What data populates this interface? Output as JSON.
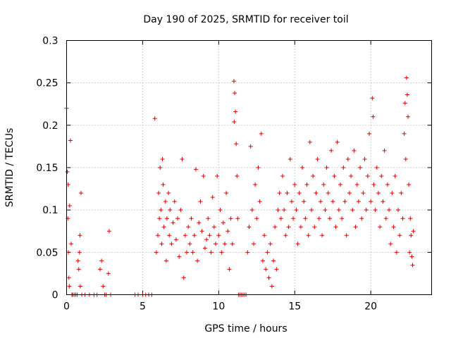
{
  "chart_data": {
    "type": "scatter",
    "title": "Day 190 of 2025, SRMTID for receiver toil",
    "xlabel": "GPS time / hours",
    "ylabel": "SRMTID / TECUs",
    "xlim": [
      0,
      24
    ],
    "ylim": [
      0,
      0.3
    ],
    "xticks": [
      0,
      5,
      10,
      15,
      20
    ],
    "xtick_labels": [
      "0",
      "5",
      "10",
      "15",
      "20"
    ],
    "yticks": [
      0,
      0.05,
      0.1,
      0.15,
      0.2,
      0.25,
      0.3
    ],
    "ytick_labels": [
      "0",
      "0.05",
      "0.1",
      "0.15",
      "0.2",
      "0.25",
      "0.3"
    ],
    "grid": true,
    "marker": "+",
    "color": "#e00000",
    "series": [
      {
        "name": "SRMTID",
        "points": [
          [
            0.0,
            0.22
          ],
          [
            0.05,
            0.145
          ],
          [
            0.1,
            0.13
          ],
          [
            0.08,
            0.09
          ],
          [
            0.12,
            0.05
          ],
          [
            0.15,
            0.02
          ],
          [
            0.2,
            0.105
          ],
          [
            0.25,
            0.182
          ],
          [
            0.3,
            0.06
          ],
          [
            0.18,
            0.01
          ],
          [
            0.35,
            0.0
          ],
          [
            0.4,
            0.0
          ],
          [
            0.5,
            0.0
          ],
          [
            0.6,
            0.0
          ],
          [
            0.7,
            0.0
          ],
          [
            0.75,
            0.04
          ],
          [
            0.8,
            0.03
          ],
          [
            0.85,
            0.05
          ],
          [
            0.9,
            0.01
          ],
          [
            0.95,
            0.12
          ],
          [
            0.88,
            0.07
          ],
          [
            1.0,
            0.0
          ],
          [
            1.2,
            0.0
          ],
          [
            1.5,
            0.0
          ],
          [
            1.8,
            0.0
          ],
          [
            2.0,
            0.0
          ],
          [
            2.2,
            0.03
          ],
          [
            2.3,
            0.04
          ],
          [
            2.4,
            0.01
          ],
          [
            2.5,
            0.0
          ],
          [
            2.6,
            0.0
          ],
          [
            2.8,
            0.075
          ],
          [
            2.75,
            0.025
          ],
          [
            2.9,
            0.0
          ],
          [
            4.5,
            0.0
          ],
          [
            4.7,
            0.0
          ],
          [
            5.0,
            0.0
          ],
          [
            5.2,
            0.0
          ],
          [
            5.4,
            0.0
          ],
          [
            5.6,
            0.0
          ],
          [
            5.8,
            0.208
          ],
          [
            5.9,
            0.05
          ],
          [
            6.0,
            0.07
          ],
          [
            6.05,
            0.12
          ],
          [
            6.1,
            0.09
          ],
          [
            6.15,
            0.15
          ],
          [
            6.2,
            0.1
          ],
          [
            6.25,
            0.06
          ],
          [
            6.3,
            0.16
          ],
          [
            6.35,
            0.13
          ],
          [
            6.4,
            0.08
          ],
          [
            6.5,
            0.11
          ],
          [
            6.55,
            0.04
          ],
          [
            6.6,
            0.09
          ],
          [
            6.7,
            0.12
          ],
          [
            6.75,
            0.07
          ],
          [
            6.8,
            0.1
          ],
          [
            6.9,
            0.06
          ],
          [
            7.0,
            0.085
          ],
          [
            7.1,
            0.11
          ],
          [
            7.2,
            0.065
          ],
          [
            7.3,
            0.09
          ],
          [
            7.4,
            0.045
          ],
          [
            7.5,
            0.1
          ],
          [
            7.6,
            0.16
          ],
          [
            7.7,
            0.02
          ],
          [
            7.8,
            0.07
          ],
          [
            7.9,
            0.05
          ],
          [
            8.0,
            0.08
          ],
          [
            8.1,
            0.06
          ],
          [
            8.2,
            0.09
          ],
          [
            8.3,
            0.05
          ],
          [
            8.4,
            0.07
          ],
          [
            8.5,
            0.148
          ],
          [
            8.6,
            0.04
          ],
          [
            8.7,
            0.085
          ],
          [
            8.8,
            0.11
          ],
          [
            8.9,
            0.075
          ],
          [
            9.0,
            0.14
          ],
          [
            9.1,
            0.055
          ],
          [
            9.2,
            0.065
          ],
          [
            9.3,
            0.09
          ],
          [
            9.4,
            0.07
          ],
          [
            9.5,
            0.05
          ],
          [
            9.6,
            0.115
          ],
          [
            9.7,
            0.08
          ],
          [
            9.8,
            0.06
          ],
          [
            9.9,
            0.14
          ],
          [
            10.0,
            0.07
          ],
          [
            10.1,
            0.1
          ],
          [
            10.2,
            0.05
          ],
          [
            10.3,
            0.085
          ],
          [
            10.4,
            0.06
          ],
          [
            10.5,
            0.12
          ],
          [
            10.6,
            0.075
          ],
          [
            10.7,
            0.03
          ],
          [
            10.8,
            0.09
          ],
          [
            10.9,
            0.06
          ],
          [
            11.0,
            0.252
          ],
          [
            11.05,
            0.238
          ],
          [
            11.1,
            0.216
          ],
          [
            11.02,
            0.204
          ],
          [
            11.15,
            0.178
          ],
          [
            11.2,
            0.14
          ],
          [
            11.25,
            0.09
          ],
          [
            11.3,
            0.0
          ],
          [
            11.4,
            0.0
          ],
          [
            11.5,
            0.0
          ],
          [
            11.6,
            0.0
          ],
          [
            11.7,
            0.0
          ],
          [
            11.8,
            0.0
          ],
          [
            11.9,
            0.05
          ],
          [
            12.0,
            0.08
          ],
          [
            12.1,
            0.175
          ],
          [
            12.2,
            0.1
          ],
          [
            12.3,
            0.06
          ],
          [
            12.4,
            0.13
          ],
          [
            12.5,
            0.09
          ],
          [
            12.6,
            0.15
          ],
          [
            12.7,
            0.11
          ],
          [
            12.8,
            0.19
          ],
          [
            12.9,
            0.04
          ],
          [
            13.0,
            0.07
          ],
          [
            13.1,
            0.03
          ],
          [
            13.2,
            0.05
          ],
          [
            13.3,
            0.02
          ],
          [
            13.4,
            0.06
          ],
          [
            13.5,
            0.01
          ],
          [
            13.6,
            0.04
          ],
          [
            13.7,
            0.08
          ],
          [
            13.8,
            0.03
          ],
          [
            13.9,
            0.1
          ],
          [
            14.0,
            0.12
          ],
          [
            14.1,
            0.09
          ],
          [
            14.2,
            0.14
          ],
          [
            14.3,
            0.1
          ],
          [
            14.4,
            0.07
          ],
          [
            14.5,
            0.12
          ],
          [
            14.6,
            0.08
          ],
          [
            14.7,
            0.16
          ],
          [
            14.8,
            0.11
          ],
          [
            14.9,
            0.09
          ],
          [
            15.0,
            0.13
          ],
          [
            15.1,
            0.1
          ],
          [
            15.2,
            0.06
          ],
          [
            15.3,
            0.12
          ],
          [
            15.4,
            0.08
          ],
          [
            15.5,
            0.15
          ],
          [
            15.6,
            0.11
          ],
          [
            15.7,
            0.09
          ],
          [
            15.8,
            0.13
          ],
          [
            15.9,
            0.07
          ],
          [
            16.0,
            0.18
          ],
          [
            16.1,
            0.1
          ],
          [
            16.2,
            0.14
          ],
          [
            16.3,
            0.08
          ],
          [
            16.4,
            0.12
          ],
          [
            16.5,
            0.16
          ],
          [
            16.6,
            0.09
          ],
          [
            16.7,
            0.11
          ],
          [
            16.8,
            0.07
          ],
          [
            16.9,
            0.13
          ],
          [
            17.0,
            0.1
          ],
          [
            17.1,
            0.15
          ],
          [
            17.2,
            0.12
          ],
          [
            17.3,
            0.09
          ],
          [
            17.4,
            0.17
          ],
          [
            17.5,
            0.11
          ],
          [
            17.6,
            0.14
          ],
          [
            17.7,
            0.08
          ],
          [
            17.8,
            0.18
          ],
          [
            17.9,
            0.1
          ],
          [
            18.0,
            0.13
          ],
          [
            18.1,
            0.09
          ],
          [
            18.2,
            0.15
          ],
          [
            18.3,
            0.11
          ],
          [
            18.4,
            0.07
          ],
          [
            18.5,
            0.16
          ],
          [
            18.6,
            0.12
          ],
          [
            18.7,
            0.14
          ],
          [
            18.8,
            0.1
          ],
          [
            18.9,
            0.17
          ],
          [
            19.0,
            0.08
          ],
          [
            19.1,
            0.13
          ],
          [
            19.2,
            0.11
          ],
          [
            19.3,
            0.15
          ],
          [
            19.4,
            0.09
          ],
          [
            19.5,
            0.12
          ],
          [
            19.6,
            0.16
          ],
          [
            19.7,
            0.1
          ],
          [
            19.8,
            0.14
          ],
          [
            19.9,
            0.19
          ],
          [
            20.0,
            0.11
          ],
          [
            20.1,
            0.232
          ],
          [
            20.15,
            0.21
          ],
          [
            20.2,
            0.13
          ],
          [
            20.3,
            0.1
          ],
          [
            20.4,
            0.15
          ],
          [
            20.5,
            0.12
          ],
          [
            20.6,
            0.08
          ],
          [
            20.7,
            0.14
          ],
          [
            20.8,
            0.11
          ],
          [
            20.9,
            0.17
          ],
          [
            21.0,
            0.09
          ],
          [
            21.1,
            0.13
          ],
          [
            21.2,
            0.1
          ],
          [
            21.3,
            0.06
          ],
          [
            21.4,
            0.12
          ],
          [
            21.5,
            0.08
          ],
          [
            21.6,
            0.14
          ],
          [
            21.7,
            0.05
          ],
          [
            21.8,
            0.1
          ],
          [
            21.9,
            0.07
          ],
          [
            22.0,
            0.12
          ],
          [
            22.1,
            0.09
          ],
          [
            22.2,
            0.19
          ],
          [
            22.25,
            0.226
          ],
          [
            22.3,
            0.16
          ],
          [
            22.35,
            0.256
          ],
          [
            22.4,
            0.236
          ],
          [
            22.45,
            0.21
          ],
          [
            22.5,
            0.13
          ],
          [
            22.55,
            0.05
          ],
          [
            22.6,
            0.09
          ],
          [
            22.65,
            0.07
          ],
          [
            22.7,
            0.045
          ],
          [
            22.75,
            0.035
          ],
          [
            22.8,
            0.075
          ]
        ]
      }
    ]
  }
}
